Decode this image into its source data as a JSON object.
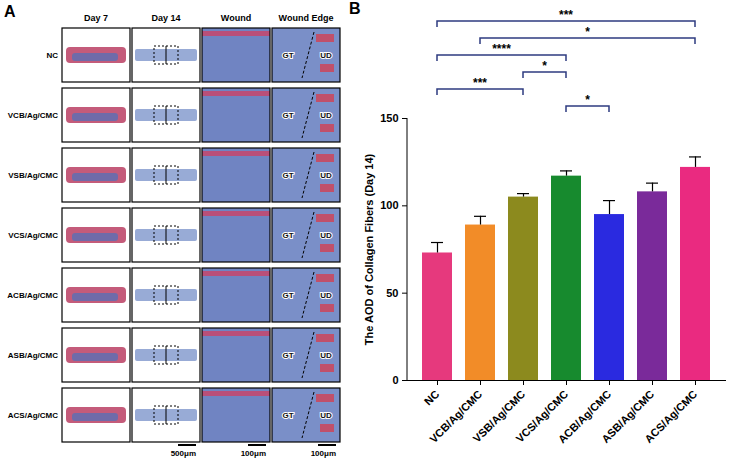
{
  "chart_data": {
    "type": "bar",
    "panel_label": "B",
    "ylabel": "The AOD of Collagen Fibers (Day 14)",
    "categories": [
      "NC",
      "VCB/Ag/CMC",
      "VSB/Ag/CMC",
      "VCS/Ag/CMC",
      "ACB/Ag/CMC",
      "ASB/Ag/CMC",
      "ACS/Ag/CMC"
    ],
    "values": [
      73,
      89,
      105,
      117,
      95,
      108,
      122
    ],
    "errors": [
      6,
      5,
      2,
      3,
      8,
      5,
      6
    ],
    "colors": [
      "#e6397d",
      "#f28c28",
      "#8c8a1e",
      "#178a2e",
      "#2a2ae0",
      "#7a2a9a",
      "#ea2a80"
    ],
    "ylim": [
      0,
      150
    ],
    "yticks": [
      0,
      50,
      100,
      150
    ],
    "grid": false,
    "comparisons": [
      {
        "from": "VCS/Ag/CMC",
        "to": "ACB/Ag/CMC",
        "label": "*"
      },
      {
        "from": "NC",
        "to": "VSB/Ag/CMC",
        "label": "***"
      },
      {
        "from": "VSB/Ag/CMC",
        "to": "VCS/Ag/CMC",
        "label": "*"
      },
      {
        "from": "NC",
        "to": "VCS/Ag/CMC",
        "label": "****"
      },
      {
        "from": "VCB/Ag/CMC",
        "to": "ACS/Ag/CMC",
        "label": "*"
      },
      {
        "from": "NC",
        "to": "ACS/Ag/CMC",
        "label": "***"
      }
    ]
  },
  "histology_panel": {
    "panel_label": "A",
    "columns": [
      "Day 7",
      "Day 14",
      "Wound",
      "Wound Edge"
    ],
    "rows": [
      "NC",
      "VCB/Ag/CMC",
      "VSB/Ag/CMC",
      "VCS/Ag/CMC",
      "ACB/Ag/CMC",
      "ASB/Ag/CMC",
      "ACS/Ag/CMC"
    ],
    "edge_labels": {
      "left": "GT",
      "right": "UD"
    },
    "scale_bars": {
      "Day 14": "500μm",
      "Wound": "100μm",
      "Wound Edge": "100μm"
    }
  }
}
